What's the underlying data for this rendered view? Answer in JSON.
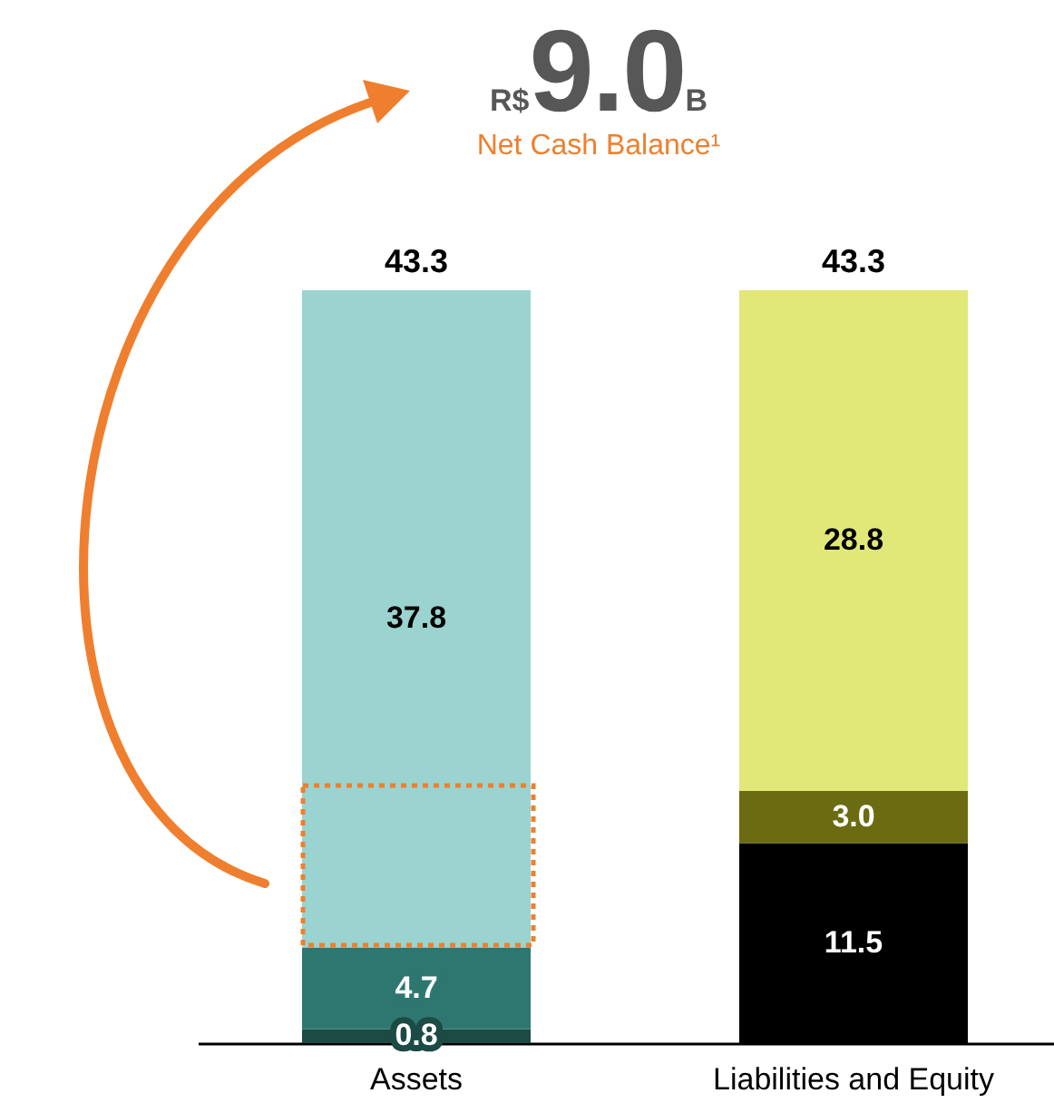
{
  "chart_data": {
    "type": "bar",
    "title": "R$9.0B",
    "subtitle": "Net Cash Balance¹",
    "categories": [
      "Assets",
      "Liabilities and Equity"
    ],
    "stacked": true,
    "series": [
      {
        "colors": [
          "#1c4a44",
          "#000000"
        ],
        "values": [
          0.8,
          11.5
        ],
        "value_labels": [
          "0.8",
          "11.5"
        ]
      },
      {
        "colors": [
          "#2e7770",
          "#6b6b12"
        ],
        "values": [
          4.7,
          3.0
        ],
        "value_labels": [
          "4.7",
          "3.0"
        ]
      },
      {
        "colors": [
          "#9ad3cf",
          "#e2e878"
        ],
        "values": [
          37.8,
          28.8
        ],
        "value_labels": [
          "37.8",
          "28.8"
        ]
      }
    ],
    "totals": [
      "43.3",
      "43.3"
    ],
    "grid": false
  }
}
